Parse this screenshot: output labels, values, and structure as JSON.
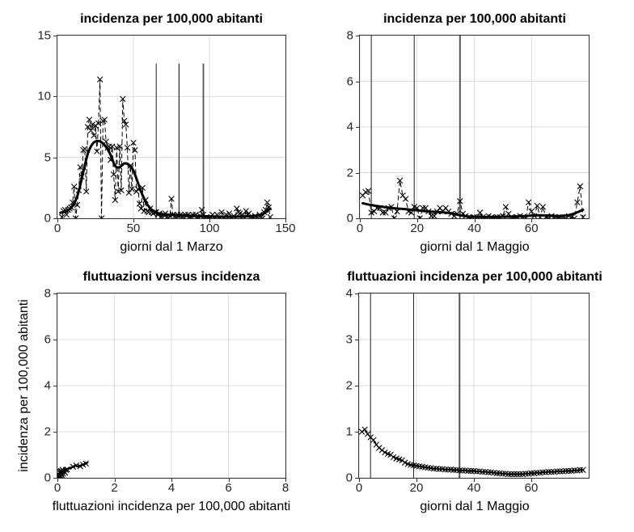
{
  "figure": {
    "background": "#ffffff",
    "axis_color": "#333333",
    "grid_color": "#dcdcdc",
    "data_color": "#000000",
    "tick_label_color": "#262626"
  },
  "chart_data": [
    {
      "type": "line",
      "title": "incidenza per 100,000 abitanti",
      "xlabel": "giorni dal 1 Marzo",
      "ylabel": "",
      "xlim": [
        0,
        150
      ],
      "ylim": [
        0,
        15
      ],
      "xticks": [
        0,
        50,
        100,
        150
      ],
      "yticks": [
        0,
        5,
        10,
        15
      ],
      "grid": true,
      "legend": "none",
      "vlines": [
        {
          "x": 65,
          "lw": 1,
          "top": 12.7,
          "color": "#1f1f1f"
        },
        {
          "x": 80,
          "lw": 1.4,
          "top": 12.7,
          "color": "#3d3d3d"
        },
        {
          "x": 96,
          "lw": 1.8,
          "top": 12.7,
          "color": "#555555"
        }
      ],
      "series": [
        {
          "name": "daily incidence",
          "style": "dashed-x",
          "marker": "x",
          "lw": 1,
          "x_start": 3,
          "y": [
            0.1,
            0.6,
            0.7,
            0.3,
            0.7,
            0.8,
            0.9,
            1.3,
            2.6,
            0,
            1.1,
            2.3,
            4.2,
            3.4,
            5.6,
            5.7,
            2.2,
            7.5,
            8.1,
            7.2,
            7.7,
            6.8,
            7.6,
            5.5,
            7.8,
            11.4,
            0,
            8.0,
            8.1,
            6.3,
            5.8,
            5.9,
            4.8,
            5.9,
            3.6,
            1.5,
            5.8,
            2.2,
            5.9,
            2.3,
            9.8,
            8.0,
            7.7,
            5.8,
            2.1,
            4.3,
            2.4,
            6.2,
            5.6,
            2.2,
            2.4,
            1.2,
            0.8,
            2.5,
            0.6,
            1.5,
            0.6,
            0.5,
            0.8,
            0.5,
            0.4,
            0.5,
            0.5,
            0.3,
            0.4,
            0.1,
            0,
            0.3,
            0.4,
            0.1,
            0,
            0.2,
            1.6,
            0.3,
            0.1,
            0,
            0.3,
            0.2,
            0.3,
            0.1,
            0,
            0.3,
            0.2,
            0.3,
            0,
            0.1,
            0.3,
            0.2,
            0.3,
            0.1,
            0,
            0.2,
            0.7,
            0.3,
            0,
            0.1,
            0,
            0,
            0,
            0.3,
            0,
            0,
            0.3,
            0,
            0,
            0.5,
            0,
            0,
            0.3,
            0,
            0.4,
            0,
            0,
            0.2,
            0,
            0.8,
            0.5,
            0.4,
            0,
            0.3,
            0,
            0.6,
            0.3,
            0.4,
            0.1,
            0,
            0,
            0.2,
            0.1,
            0,
            0.3,
            0.1,
            0,
            0.5,
            0.7,
            1.3,
            0.9,
            0.1
          ]
        },
        {
          "name": "smoothed trend",
          "style": "smooth",
          "lw": 3,
          "x": [
            2,
            5,
            8,
            11,
            14,
            17,
            20,
            23,
            26,
            29,
            32,
            35,
            38,
            41,
            44,
            47,
            50,
            53,
            56,
            59,
            62,
            65,
            68,
            72,
            76,
            80,
            85,
            90,
            95,
            100,
            105,
            110,
            115,
            120,
            125,
            130,
            134,
            137,
            140
          ],
          "y": [
            0.45,
            0.55,
            0.75,
            1.2,
            2.2,
            3.8,
            5.3,
            6.1,
            6.35,
            6.25,
            5.85,
            5.2,
            4.3,
            4.2,
            4.5,
            4.4,
            3.9,
            2.9,
            1.9,
            1.15,
            0.7,
            0.45,
            0.35,
            0.3,
            0.28,
            0.26,
            0.23,
            0.2,
            0.18,
            0.16,
            0.14,
            0.13,
            0.13,
            0.14,
            0.16,
            0.2,
            0.3,
            0.5,
            0.8
          ]
        }
      ]
    },
    {
      "type": "line",
      "title": "incidenza per 100,000 abitanti",
      "xlabel": "giorni dal 1 Maggio",
      "ylabel": "",
      "xlim": [
        0,
        80
      ],
      "ylim": [
        0,
        8
      ],
      "xticks": [
        0,
        20,
        40,
        60
      ],
      "yticks": [
        0,
        2,
        4,
        6,
        8
      ],
      "grid": true,
      "legend": "none",
      "vlines": [
        {
          "x": 4,
          "lw": 1,
          "color": "#1f1f1f"
        },
        {
          "x": 19,
          "lw": 1,
          "color": "#1f1f1f"
        },
        {
          "x": 35,
          "lw": 2,
          "color": "#555555"
        }
      ],
      "series": [
        {
          "name": "daily incidence",
          "style": "dashed-x",
          "marker": "x",
          "lw": 1,
          "x_start": 1,
          "y": [
            1.0,
            1.15,
            1.2,
            0.25,
            0.3,
            0.45,
            0.45,
            0.25,
            0.25,
            0.45,
            0.5,
            0,
            0.3,
            1.65,
            1.0,
            0.85,
            0.3,
            0.25,
            0.5,
            0.45,
            0,
            0.45,
            0.45,
            0.3,
            0.1,
            0.1,
            0.3,
            0.45,
            0.3,
            0.45,
            0.3,
            0.2,
            0.1,
            0.2,
            0.75,
            0.2,
            0.1,
            0.05,
            0,
            0.05,
            0.05,
            0.25,
            0.05,
            0,
            0.1,
            0.05,
            0,
            0.05,
            0.05,
            0.1,
            0.5,
            0.2,
            0.05,
            0,
            0.05,
            0.1,
            0.05,
            0,
            0.7,
            0.3,
            0.1,
            0.55,
            0.05,
            0.5,
            0.05,
            0,
            0.1,
            0.05,
            0,
            0.05,
            0.05,
            0,
            0.1,
            0.05,
            0,
            0.7,
            1.4,
            0.05
          ]
        },
        {
          "name": "smoothed trend",
          "style": "smooth",
          "lw": 3,
          "x": [
            1,
            4,
            8,
            12,
            16,
            20,
            24,
            28,
            32,
            35,
            38,
            42,
            46,
            50,
            54,
            58,
            62,
            66,
            70,
            74,
            78
          ],
          "y": [
            0.66,
            0.58,
            0.5,
            0.44,
            0.4,
            0.35,
            0.3,
            0.27,
            0.22,
            0.13,
            0.08,
            0.06,
            0.06,
            0.07,
            0.08,
            0.1,
            0.13,
            0.12,
            0.1,
            0.17,
            0.37
          ]
        }
      ]
    },
    {
      "type": "scatter",
      "title": "fluttuazioni versus incidenza",
      "xlabel": "fluttuazioni incidenza per 100,000 abitanti",
      "ylabel": "incidenza per 100,000 abitanti",
      "xlim": [
        0,
        8
      ],
      "ylim": [
        0,
        8
      ],
      "xticks": [
        0,
        2,
        4,
        6,
        8
      ],
      "yticks": [
        0,
        2,
        4,
        6,
        8
      ],
      "grid": true,
      "legend": "none",
      "vlines": [],
      "series": [
        {
          "name": "fluctuation vs incidence points",
          "style": "x-only",
          "marker": "x",
          "x": [
            0.08,
            0.1,
            0.14,
            0.1,
            0.16,
            0.2,
            0.13,
            0.24,
            0.3,
            0.2,
            0.15,
            0.1,
            0.27,
            0.34,
            0.18,
            0.12,
            0.06,
            0.55,
            0.66,
            0.8,
            0.9,
            1.0
          ],
          "y": [
            0.04,
            0.1,
            0.16,
            0.2,
            0.24,
            0.3,
            0.3,
            0.27,
            0.34,
            0.18,
            0.12,
            0.27,
            0.22,
            0.37,
            0.35,
            0.06,
            0.1,
            0.48,
            0.54,
            0.5,
            0.57,
            0.62
          ]
        },
        {
          "name": "trend relation",
          "style": "smooth",
          "lw": 2.5,
          "x": [
            0.07,
            0.12,
            0.18,
            0.16,
            0.2,
            0.3,
            0.4,
            0.52,
            0.63,
            0.7,
            0.78,
            0.88,
            0.97,
            1.05
          ],
          "y": [
            0.05,
            0.12,
            0.2,
            0.28,
            0.33,
            0.36,
            0.4,
            0.46,
            0.53,
            0.5,
            0.52,
            0.57,
            0.61,
            0.66
          ]
        }
      ]
    },
    {
      "type": "line",
      "title": "fluttuazioni incidenza per 100,000 abitanti",
      "xlabel": "giorni dal 1 Maggio",
      "ylabel": "",
      "xlim": [
        0,
        80
      ],
      "ylim": [
        0,
        4
      ],
      "xticks": [
        0,
        20,
        40,
        60
      ],
      "yticks": [
        0,
        1,
        2,
        3,
        4
      ],
      "grid": true,
      "legend": "none",
      "vlines": [
        {
          "x": 4,
          "lw": 1,
          "color": "#1f1f1f"
        },
        {
          "x": 19,
          "lw": 1,
          "color": "#1f1f1f"
        },
        {
          "x": 35,
          "lw": 2,
          "color": "#555555"
        }
      ],
      "series": [
        {
          "name": "daily fluctuation",
          "style": "solid-x",
          "marker": "x",
          "lw": 1.4,
          "x_start": 1,
          "y": [
            1.0,
            1.05,
            0.95,
            0.88,
            0.82,
            0.72,
            0.65,
            0.6,
            0.55,
            0.52,
            0.5,
            0.45,
            0.42,
            0.4,
            0.38,
            0.33,
            0.3,
            0.28,
            0.27,
            0.26,
            0.25,
            0.24,
            0.23,
            0.22,
            0.21,
            0.2,
            0.2,
            0.19,
            0.19,
            0.18,
            0.18,
            0.18,
            0.17,
            0.17,
            0.16,
            0.16,
            0.16,
            0.15,
            0.15,
            0.15,
            0.14,
            0.14,
            0.13,
            0.13,
            0.12,
            0.12,
            0.11,
            0.1,
            0.1,
            0.09,
            0.09,
            0.08,
            0.08,
            0.08,
            0.08,
            0.08,
            0.08,
            0.09,
            0.09,
            0.1,
            0.1,
            0.11,
            0.11,
            0.12,
            0.12,
            0.13,
            0.13,
            0.13,
            0.14,
            0.14,
            0.14,
            0.15,
            0.15,
            0.15,
            0.16,
            0.16,
            0.17,
            0.17
          ]
        }
      ]
    }
  ]
}
